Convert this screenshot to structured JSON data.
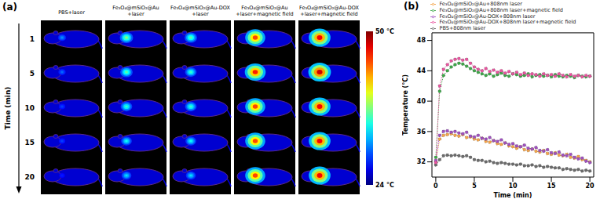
{
  "thermal_images": {
    "panel_label": "(a)",
    "row_axis_label": "Time (min)",
    "rows": [
      1,
      5,
      10,
      15,
      20
    ],
    "columns": [
      {
        "title": [
          "PBS+laser"
        ],
        "hotspot_temperature": [
          31,
          30,
          29,
          29,
          28
        ]
      },
      {
        "title": [
          "Fe₃O₄@mSiO₂@Au",
          "+laser"
        ],
        "hotspot_temperature": [
          37,
          36,
          35,
          34,
          33
        ]
      },
      {
        "title": [
          "Fe₃O₄@mSiO₂@Au-DOX",
          "+laser"
        ],
        "hotspot_temperature": [
          36,
          35,
          35,
          34,
          33
        ]
      },
      {
        "title": [
          "Fe₃O₄@mSiO₂@Au",
          "+laser+magnetic field"
        ],
        "hotspot_temperature": [
          45,
          46,
          45,
          45,
          45
        ]
      },
      {
        "title": [
          "Fe₃O₄@mSiO₂@Au-DOX",
          "+laser+magnetic field"
        ],
        "hotspot_temperature": [
          47,
          48,
          47,
          47,
          47
        ]
      }
    ],
    "colorbar": {
      "range": [
        24,
        50
      ],
      "ticks": [
        {
          "value": 50,
          "label": "50 °C"
        },
        {
          "value": 24,
          "label": "24 °C"
        }
      ]
    }
  },
  "chart_data": {
    "type": "line",
    "panel_label": "(b)",
    "x_label": "Time (min)",
    "y_label": "Temperature (°C)",
    "legend": "top",
    "xlim": [
      -0.5,
      20.5
    ],
    "xticks": [
      0,
      5,
      10,
      15,
      20
    ],
    "ylim": [
      30,
      49
    ],
    "yticks": [
      32,
      36,
      40,
      44,
      48
    ],
    "x": [
      0,
      0.5,
      1,
      1.5,
      2,
      2.5,
      3,
      3.5,
      4,
      4.5,
      5,
      5.5,
      6,
      6.5,
      7,
      7.5,
      8,
      8.5,
      9,
      9.5,
      10,
      10.5,
      11,
      11.5,
      12,
      12.5,
      13,
      13.5,
      14,
      14.5,
      15,
      15.5,
      16,
      16.5,
      17,
      17.5,
      18,
      18.5,
      19,
      19.5,
      20
    ],
    "series": [
      {
        "name": "PBS+808nm laser",
        "color": "#6b6b6b",
        "marker": "circle",
        "line_style": "dotted",
        "values": [
          31.6,
          32.3,
          32.8,
          32.9,
          32.8,
          32.9,
          32.8,
          32.7,
          32.8,
          32.6,
          32.3,
          32.2,
          32.2,
          32.0,
          32.1,
          31.9,
          31.8,
          31.9,
          31.8,
          31.7,
          31.7,
          31.6,
          31.7,
          31.5,
          31.5,
          31.6,
          31.4,
          31.5,
          31.3,
          31.4,
          31.3,
          31.2,
          31.2,
          31.0,
          31.1,
          31.0,
          30.9,
          31.0,
          30.8,
          30.9,
          30.8
        ]
      },
      {
        "name": "Fe₃O₄@mSiO₂@Au+808nm laser",
        "color": "#f5a54a",
        "marker": "circle",
        "line_style": "dotted",
        "values": [
          32.0,
          35.0,
          35.5,
          35.6,
          35.7,
          35.5,
          35.4,
          35.6,
          35.2,
          35.3,
          35.0,
          34.9,
          35.1,
          34.7,
          34.6,
          34.8,
          34.4,
          34.3,
          34.5,
          34.1,
          34.0,
          33.8,
          34.0,
          33.6,
          33.5,
          33.7,
          33.4,
          33.3,
          33.5,
          33.1,
          33.0,
          33.2,
          32.9,
          32.8,
          33.0,
          32.6,
          32.5,
          32.7,
          32.3,
          32.2,
          32.0
        ]
      },
      {
        "name": "Fe₃O₄@mSiO₂@Au-DOX+808nm laser",
        "color": "#a050c0",
        "marker": "circle",
        "line_style": "dotted",
        "values": [
          32.2,
          35.5,
          36.0,
          36.1,
          35.9,
          36.0,
          35.8,
          35.7,
          35.9,
          35.4,
          35.3,
          35.5,
          35.1,
          35.0,
          35.2,
          34.8,
          34.7,
          34.9,
          34.5,
          34.3,
          34.4,
          34.1,
          34.0,
          34.2,
          33.8,
          33.7,
          33.9,
          33.5,
          33.4,
          33.6,
          33.2,
          33.1,
          33.3,
          32.9,
          32.8,
          33.0,
          32.6,
          32.4,
          32.5,
          32.1,
          31.9
        ]
      },
      {
        "name": "Fe₃O₄@mSiO₂@Au+808nm laser+magnetic field",
        "color": "#3fa84a",
        "marker": "circle",
        "line_style": "dotted",
        "values": [
          32.6,
          41.3,
          43.4,
          44.0,
          44.5,
          44.8,
          45.0,
          44.9,
          44.6,
          44.3,
          44.0,
          43.8,
          43.6,
          43.4,
          43.6,
          43.3,
          43.5,
          43.7,
          43.4,
          43.3,
          43.6,
          43.5,
          43.3,
          43.4,
          43.6,
          43.2,
          43.4,
          43.5,
          43.3,
          43.4,
          43.2,
          43.5,
          43.3,
          43.2,
          43.4,
          43.3,
          43.1,
          43.4,
          43.3,
          43.2,
          43.3
        ]
      },
      {
        "name": "Fe₃O₄@mSiO₂@Au-DOX+808nm laser+magnetic field",
        "color": "#e8559f",
        "marker": "circle",
        "line_style": "dotted",
        "values": [
          31.9,
          42.0,
          44.2,
          44.8,
          45.3,
          45.5,
          45.6,
          45.4,
          45.5,
          45.0,
          44.5,
          44.2,
          44.0,
          44.3,
          43.9,
          44.1,
          43.8,
          44.0,
          43.7,
          43.9,
          43.6,
          43.8,
          43.5,
          43.7,
          43.4,
          43.6,
          43.5,
          43.3,
          43.6,
          43.4,
          43.5,
          43.3,
          43.6,
          43.4,
          43.2,
          43.5,
          43.3,
          43.4,
          43.2,
          43.4,
          43.3
        ]
      }
    ]
  }
}
